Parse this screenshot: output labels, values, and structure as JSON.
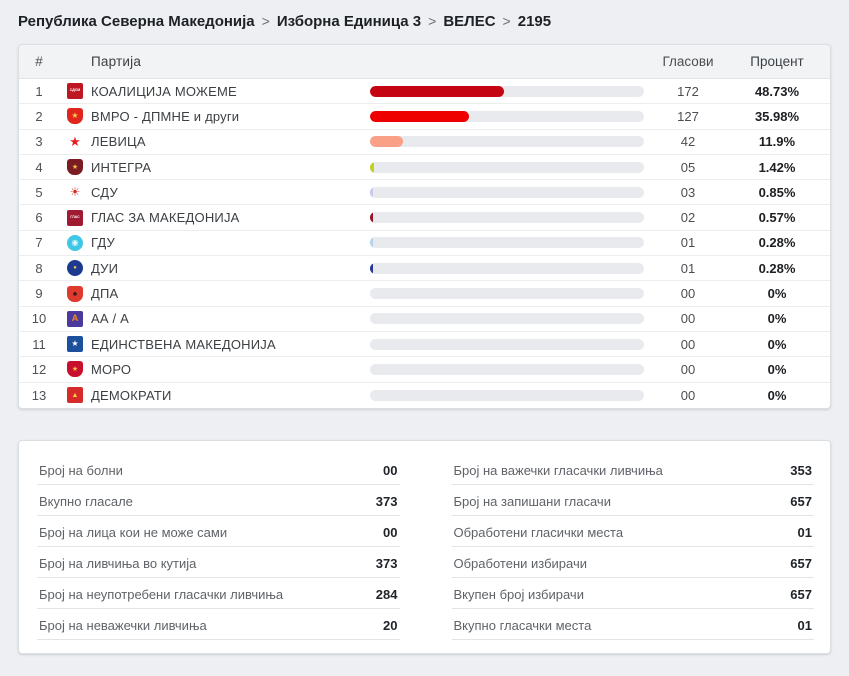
{
  "breadcrumb": {
    "separator": ">",
    "items": [
      "Република Северна Македонија",
      "Изборна Единица 3",
      "ВЕЛЕС",
      "2195"
    ]
  },
  "results_table": {
    "columns": {
      "rank": "#",
      "party": "Партија",
      "votes": "Гласови",
      "percent": "Процент"
    },
    "rows": [
      {
        "rank": "1",
        "party": "КОАЛИЦИЈА МОЖЕМЕ",
        "votes": "172",
        "percent": "48.73%",
        "bar_pct": 48.73,
        "bar_color": "#c40511",
        "logo": {
          "icon": "sdsm-logo",
          "shape": "square",
          "bg": "#bf1722",
          "fg": "#ffffff",
          "glyph": "СДСМ",
          "fs": 3.5
        }
      },
      {
        "rank": "2",
        "party": "ВМРО - ДПМНЕ и други",
        "votes": "127",
        "percent": "35.98%",
        "bar_pct": 35.98,
        "bar_color": "#ee0000",
        "logo": {
          "icon": "vmro-dpmne-logo",
          "shape": "shield",
          "bg": "#e0251c",
          "fg": "#f7c948",
          "glyph": "★",
          "fs": 8
        }
      },
      {
        "rank": "3",
        "party": "ЛЕВИЦА",
        "votes": "42",
        "percent": "11.9%",
        "bar_pct": 11.9,
        "bar_color": "#f9a087",
        "logo": {
          "icon": "levica-logo",
          "shape": "plain",
          "bg": "transparent",
          "fg": "#e31e24",
          "glyph": "★",
          "fs": 13
        }
      },
      {
        "rank": "4",
        "party": "ИНТЕГРА",
        "votes": "05",
        "percent": "1.42%",
        "bar_pct": 1.42,
        "bar_color": "#c3d021",
        "logo": {
          "icon": "integra-logo",
          "shape": "shield",
          "bg": "#7a1d23",
          "fg": "#f0c04a",
          "glyph": "★",
          "fs": 7
        }
      },
      {
        "rank": "5",
        "party": "СДУ",
        "votes": "03",
        "percent": "0.85%",
        "bar_pct": 0.85,
        "bar_color": "#c9c7f2",
        "logo": {
          "icon": "sdu-logo",
          "shape": "plain",
          "bg": "transparent",
          "fg": "#d42b1e",
          "glyph": "☀",
          "fs": 12
        }
      },
      {
        "rank": "6",
        "party": "ГЛАС ЗА МАКЕДОНИЈА",
        "votes": "02",
        "percent": "0.57%",
        "bar_pct": 0.57,
        "bar_color": "#971223",
        "logo": {
          "icon": "glas-za-makedonija-logo",
          "shape": "square",
          "bg": "#9e1b32",
          "fg": "#ffffff",
          "glyph": "ГЛАС",
          "fs": 3.5
        }
      },
      {
        "rank": "7",
        "party": "ГДУ",
        "votes": "01",
        "percent": "0.28%",
        "bar_pct": 0.28,
        "bar_color": "#b5d3ea",
        "logo": {
          "icon": "gdu-logo",
          "shape": "circle",
          "bg": "#41c7e6",
          "fg": "#eafaff",
          "glyph": "◉",
          "fs": 8
        }
      },
      {
        "rank": "8",
        "party": "ДУИ",
        "votes": "01",
        "percent": "0.28%",
        "bar_pct": 0.28,
        "bar_color": "#27379b",
        "logo": {
          "icon": "dui-logo",
          "shape": "circle",
          "bg": "#1d3a8f",
          "fg": "#f2c14e",
          "glyph": "●",
          "fs": 6
        }
      },
      {
        "rank": "9",
        "party": "ДПА",
        "votes": "00",
        "percent": "0%",
        "bar_pct": 0,
        "bar_color": "#cccccc",
        "logo": {
          "icon": "dpa-logo",
          "shape": "shield",
          "bg": "#e03a2f",
          "fg": "#1a1a1a",
          "glyph": "♠",
          "fs": 8
        }
      },
      {
        "rank": "10",
        "party": "АА / А",
        "votes": "00",
        "percent": "0%",
        "bar_pct": 0,
        "bar_color": "#cccccc",
        "logo": {
          "icon": "aa-a-logo",
          "shape": "square",
          "bg": "#4b3a9b",
          "fg": "#f08a24",
          "glyph": "A",
          "fs": 9
        }
      },
      {
        "rank": "11",
        "party": "ЕДИНСТВЕНА МАКЕДОНИЈА",
        "votes": "00",
        "percent": "0%",
        "bar_pct": 0,
        "bar_color": "#cccccc",
        "logo": {
          "icon": "edinstvena-makedonija-logo",
          "shape": "square",
          "bg": "#1c4f9c",
          "fg": "#ffffff",
          "glyph": "★",
          "fs": 8
        }
      },
      {
        "rank": "12",
        "party": "МОРО",
        "votes": "00",
        "percent": "0%",
        "bar_pct": 0,
        "bar_color": "#cccccc",
        "logo": {
          "icon": "moro-logo",
          "shape": "shield",
          "bg": "#c8102e",
          "fg": "#f0c04a",
          "glyph": "★",
          "fs": 7
        }
      },
      {
        "rank": "13",
        "party": "ДЕМОКРАТИ",
        "votes": "00",
        "percent": "0%",
        "bar_pct": 0,
        "bar_color": "#cccccc",
        "logo": {
          "icon": "demokrati-logo",
          "shape": "square",
          "bg": "#d62b28",
          "fg": "#ffd23f",
          "glyph": "▲",
          "fs": 7
        }
      }
    ]
  },
  "summary": {
    "left": [
      {
        "label": "Број на болни",
        "value": "00"
      },
      {
        "label": "Вкупно гласале",
        "value": "373"
      },
      {
        "label": "Број на лица кои не може сами",
        "value": "00"
      },
      {
        "label": "Број на ливчиња во кутија",
        "value": "373"
      },
      {
        "label": "Број на неупотребени гласачки ливчиња",
        "value": "284"
      },
      {
        "label": "Број на неважечки ливчиња",
        "value": "20"
      }
    ],
    "right": [
      {
        "label": "Број на важечки гласачки ливчиња",
        "value": "353"
      },
      {
        "label": "Број на запишани гласачи",
        "value": "657"
      },
      {
        "label": "Обработени гласички места",
        "value": "01"
      },
      {
        "label": "Обработени избирачи",
        "value": "657"
      },
      {
        "label": "Вкупен број избирачи",
        "value": "657"
      },
      {
        "label": "Вкупно гласачки места",
        "value": "01"
      }
    ]
  },
  "colors": {
    "page_bg": "#edeff2",
    "card_bg": "#ffffff",
    "header_bg": "#f1f3f4",
    "bar_track": "#e8eaed"
  }
}
